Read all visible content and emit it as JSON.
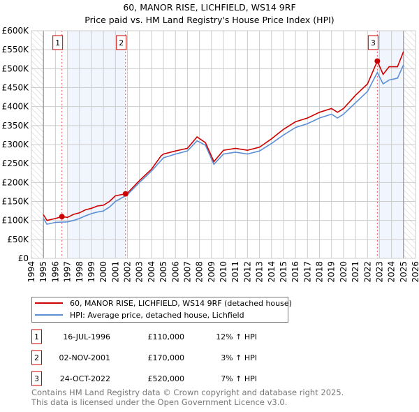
{
  "chart_data": {
    "type": "line",
    "title": "60, MANOR RISE, LICHFIELD, WS14 9RF",
    "subtitle": "Price paid vs. HM Land Registry's House Price Index (HPI)",
    "xlim": [
      1994,
      2026
    ],
    "ylim": [
      0,
      600000
    ],
    "grid": true,
    "x_ticks": [
      "1994",
      "1995",
      "1996",
      "1997",
      "1998",
      "1999",
      "2000",
      "2001",
      "2002",
      "2003",
      "2004",
      "2005",
      "2006",
      "2007",
      "2008",
      "2009",
      "2010",
      "2011",
      "2012",
      "2013",
      "2014",
      "2015",
      "2016",
      "2017",
      "2018",
      "2019",
      "2020",
      "2021",
      "2022",
      "2023",
      "2024",
      "2025",
      "2026"
    ],
    "y_ticks": [
      {
        "v": 0,
        "label": "£0"
      },
      {
        "v": 50000,
        "label": "£50K"
      },
      {
        "v": 100000,
        "label": "£100K"
      },
      {
        "v": 150000,
        "label": "£150K"
      },
      {
        "v": 200000,
        "label": "£200K"
      },
      {
        "v": 250000,
        "label": "£250K"
      },
      {
        "v": 300000,
        "label": "£300K"
      },
      {
        "v": 350000,
        "label": "£350K"
      },
      {
        "v": 400000,
        "label": "£400K"
      },
      {
        "v": 450000,
        "label": "£450K"
      },
      {
        "v": 500000,
        "label": "£500K"
      },
      {
        "v": 550000,
        "label": "£550K"
      },
      {
        "v": 600000,
        "label": "£600K"
      }
    ],
    "data_range": [
      1995,
      2025
    ],
    "shaded_ranges": [
      [
        1997,
        2001.84
      ],
      [
        2022.82,
        2025
      ]
    ],
    "series": [
      {
        "name": "60, MANOR RISE, LICHFIELD, WS14 9RF (detached house)",
        "color": "#cc0000",
        "x": [
          1995,
          1995.3,
          1996,
          1996.54,
          1997,
          1997.5,
          1998,
          1998.5,
          1999,
          1999.5,
          2000,
          2000.5,
          2001,
          2001.84,
          2002,
          2003,
          2004,
          2004.8,
          2005,
          2006,
          2007,
          2007.8,
          2008.5,
          2009.2,
          2010,
          2011,
          2012,
          2013,
          2014,
          2015,
          2016,
          2017,
          2018,
          2019,
          2019.5,
          2020,
          2021,
          2022,
          2022.82,
          2023.3,
          2023.8,
          2024.5,
          2025
        ],
        "y": [
          115000,
          100000,
          105000,
          110000,
          108000,
          116000,
          120000,
          128000,
          132000,
          138000,
          140000,
          150000,
          165000,
          170000,
          172000,
          205000,
          235000,
          270000,
          275000,
          283000,
          290000,
          320000,
          305000,
          255000,
          285000,
          290000,
          285000,
          293000,
          315000,
          340000,
          360000,
          370000,
          385000,
          395000,
          385000,
          395000,
          430000,
          460000,
          520000,
          485000,
          505000,
          505000,
          545000
        ]
      },
      {
        "name": "HPI: Average price, detached house, Lichfield",
        "color": "#5b8fd4",
        "x": [
          1995,
          1995.3,
          1996,
          1997,
          1997.5,
          1998,
          1998.5,
          1999,
          1999.5,
          2000,
          2000.5,
          2001,
          2002,
          2003,
          2004,
          2005,
          2006,
          2007,
          2007.8,
          2008.5,
          2009.2,
          2010,
          2011,
          2012,
          2013,
          2014,
          2015,
          2016,
          2017,
          2018,
          2019,
          2019.5,
          2020,
          2021,
          2022,
          2022.82,
          2023.3,
          2023.8,
          2024.5,
          2025
        ],
        "y": [
          105000,
          90000,
          95000,
          96000,
          100000,
          105000,
          112000,
          118000,
          122000,
          125000,
          135000,
          150000,
          168000,
          200000,
          230000,
          265000,
          275000,
          283000,
          310000,
          298000,
          248000,
          275000,
          280000,
          275000,
          283000,
          303000,
          325000,
          345000,
          355000,
          370000,
          380000,
          370000,
          380000,
          410000,
          440000,
          490000,
          460000,
          470000,
          475000,
          510000
        ]
      }
    ],
    "sales": [
      {
        "label": "1",
        "x": 1996.54,
        "price": 110000
      },
      {
        "label": "2",
        "x": 2001.84,
        "price": 170000
      },
      {
        "label": "3",
        "x": 2022.82,
        "price": 520000
      }
    ]
  },
  "legend": [
    "60, MANOR RISE, LICHFIELD, WS14 9RF (detached house)",
    "HPI: Average price, detached house, Lichfield"
  ],
  "transactions": [
    {
      "num": "1",
      "date": "16-JUL-1996",
      "price": "£110,000",
      "hpi": "12% ↑ HPI"
    },
    {
      "num": "2",
      "date": "02-NOV-2001",
      "price": "£170,000",
      "hpi": "3% ↑ HPI"
    },
    {
      "num": "3",
      "date": "24-OCT-2022",
      "price": "£520,000",
      "hpi": "7% ↑ HPI"
    }
  ],
  "footer": [
    "Contains HM Land Registry data © Crown copyright and database right 2025.",
    "This data is licensed under the Open Government Licence v3.0."
  ]
}
